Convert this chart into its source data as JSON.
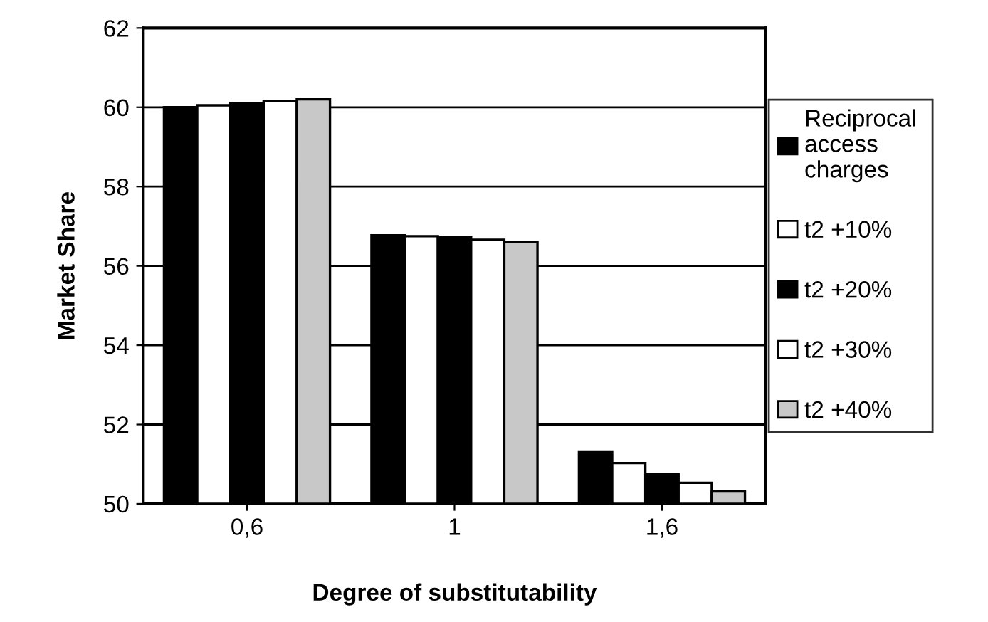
{
  "chart_data": {
    "type": "bar",
    "xlabel": "Degree of substitutability",
    "ylabel": "Market Share",
    "categories": [
      "0,6",
      "1",
      "1,6"
    ],
    "series": [
      {
        "name": "Reciprocal access charges",
        "color": "#000000",
        "values": [
          60.0,
          56.77,
          51.3
        ]
      },
      {
        "name": "t2 +10%",
        "color": "#ffffff",
        "values": [
          60.05,
          56.75,
          51.03
        ]
      },
      {
        "name": "t2 +20%",
        "color": "#000000",
        "values": [
          60.1,
          56.72,
          50.75
        ]
      },
      {
        "name": "t2 +30%",
        "color": "#ffffff",
        "values": [
          60.16,
          56.66,
          50.53
        ]
      },
      {
        "name": "t2 +40%",
        "color": "#c8c8c8",
        "values": [
          60.2,
          56.6,
          50.31
        ]
      }
    ],
    "ylim": [
      50,
      62
    ],
    "yticks": [
      50,
      52,
      54,
      56,
      58,
      60,
      62
    ],
    "grid": "y",
    "legend": "right"
  }
}
